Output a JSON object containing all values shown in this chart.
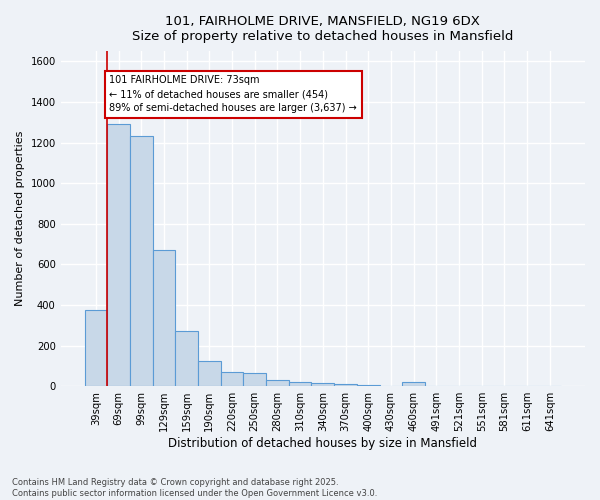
{
  "title_line1": "101, FAIRHOLME DRIVE, MANSFIELD, NG19 6DX",
  "title_line2": "Size of property relative to detached houses in Mansfield",
  "xlabel": "Distribution of detached houses by size in Mansfield",
  "ylabel": "Number of detached properties",
  "bar_labels": [
    "39sqm",
    "69sqm",
    "99sqm",
    "129sqm",
    "159sqm",
    "190sqm",
    "220sqm",
    "250sqm",
    "280sqm",
    "310sqm",
    "340sqm",
    "370sqm",
    "400sqm",
    "430sqm",
    "460sqm",
    "491sqm",
    "521sqm",
    "551sqm",
    "581sqm",
    "611sqm",
    "641sqm"
  ],
  "bar_values": [
    375,
    1290,
    1230,
    670,
    270,
    125,
    70,
    65,
    30,
    20,
    15,
    10,
    5,
    3,
    20,
    0,
    0,
    0,
    0,
    0,
    0
  ],
  "bar_color": "#c8d8e8",
  "bar_edge_color": "#5b9bd5",
  "ylim": [
    0,
    1650
  ],
  "yticks": [
    0,
    200,
    400,
    600,
    800,
    1000,
    1200,
    1400,
    1600
  ],
  "vline_x": 0.5,
  "annotation_text": "101 FAIRHOLME DRIVE: 73sqm\n← 11% of detached houses are smaller (454)\n89% of semi-detached houses are larger (3,637) →",
  "annotation_box_color": "white",
  "annotation_box_edge_color": "#cc0000",
  "vline_color": "#cc0000",
  "footer_line1": "Contains HM Land Registry data © Crown copyright and database right 2025.",
  "footer_line2": "Contains public sector information licensed under the Open Government Licence v3.0.",
  "background_color": "#eef2f7",
  "grid_color": "white"
}
